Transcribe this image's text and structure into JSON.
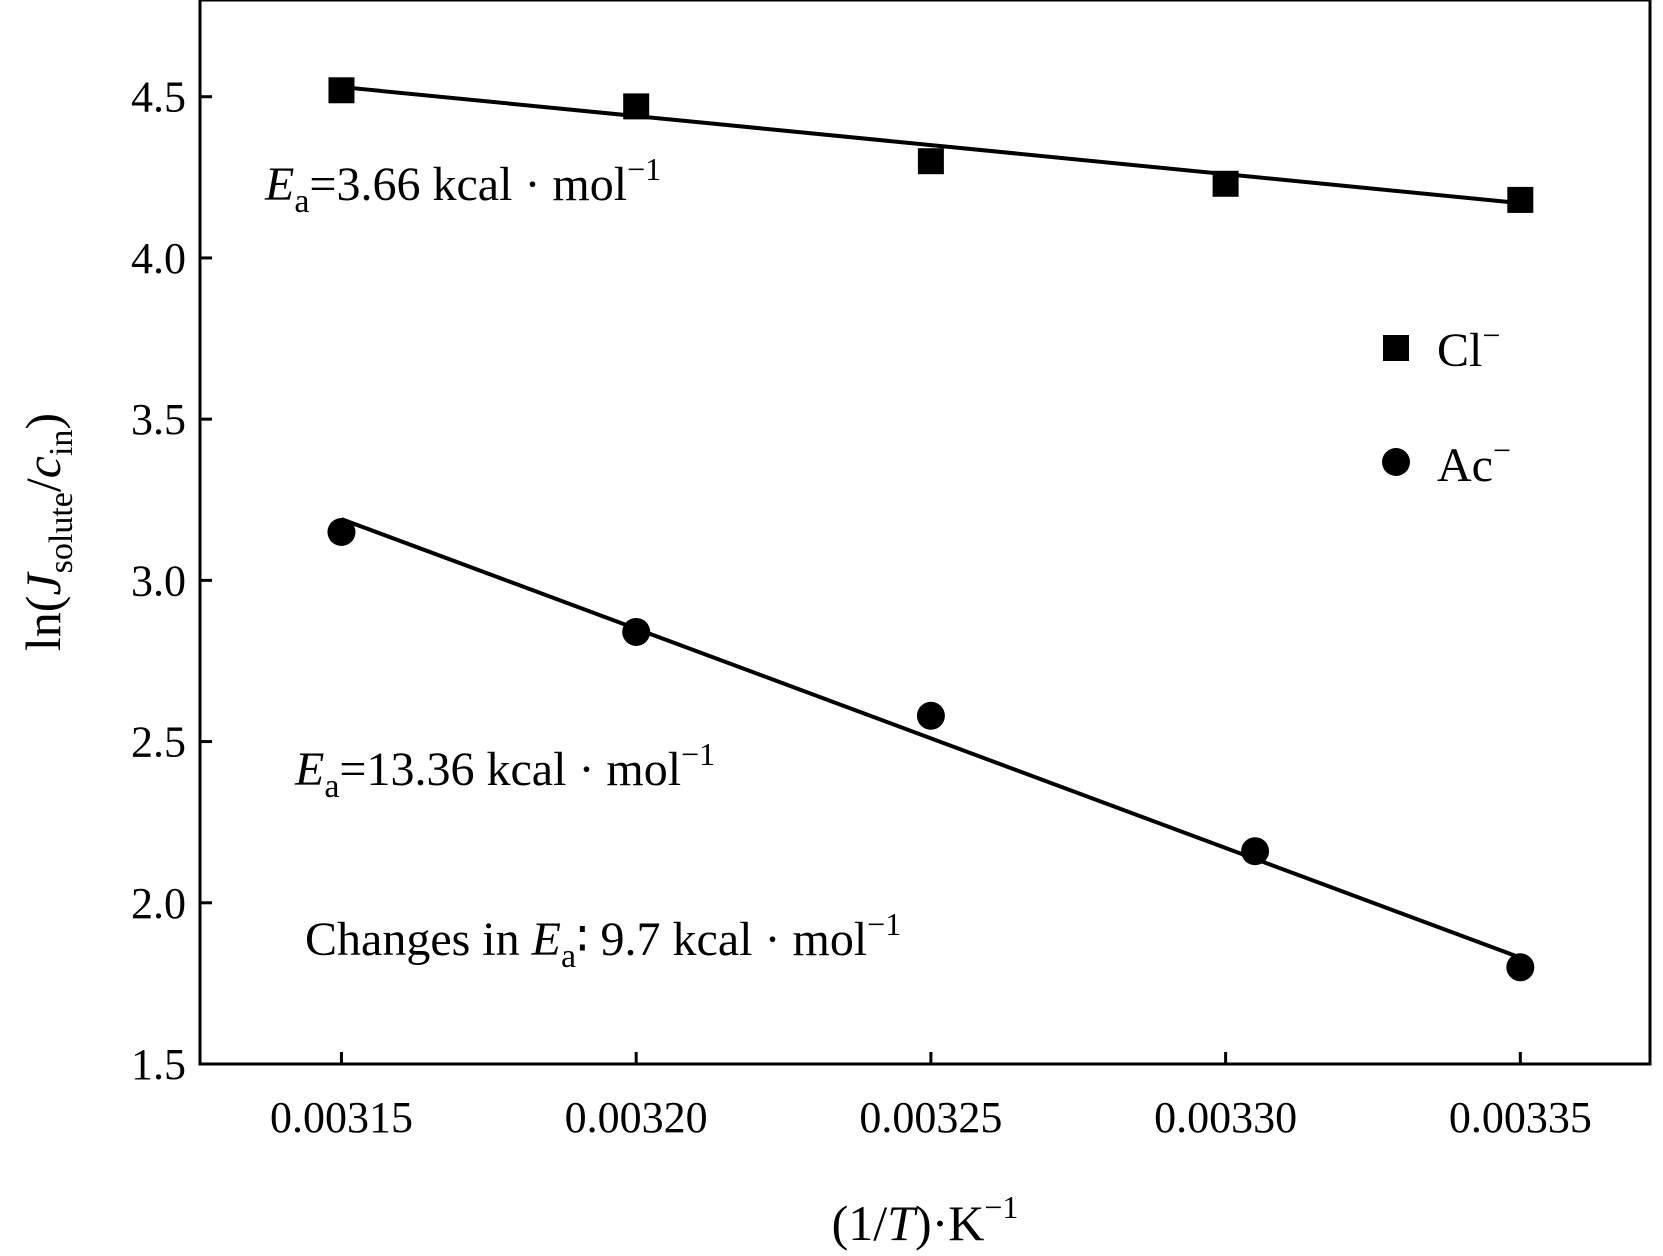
{
  "chart_data": {
    "type": "scatter",
    "title": "",
    "xlabel": {
      "prefix": "(1/",
      "var": "T",
      "suffix": ")·K",
      "sup": "−1"
    },
    "ylabel": {
      "prefix": "ln(",
      "var1": "J",
      "sub1": "solute",
      "mid": "/",
      "var2": "c",
      "sub2": "in",
      "suffix": ")"
    },
    "xlim": [
      0.003126,
      0.003372
    ],
    "ylim": [
      1.5,
      4.8
    ],
    "xticks": [
      {
        "value": 0.00315,
        "label": "0.00315"
      },
      {
        "value": 0.0032,
        "label": "0.00320"
      },
      {
        "value": 0.00325,
        "label": "0.00325"
      },
      {
        "value": 0.0033,
        "label": "0.00330"
      },
      {
        "value": 0.00335,
        "label": "0.00335"
      }
    ],
    "yticks": [
      {
        "value": 1.5,
        "label": "1.5"
      },
      {
        "value": 2.0,
        "label": "2.0"
      },
      {
        "value": 2.5,
        "label": "2.5"
      },
      {
        "value": 3.0,
        "label": "3.0"
      },
      {
        "value": 3.5,
        "label": "3.5"
      },
      {
        "value": 4.0,
        "label": "4.0"
      },
      {
        "value": 4.5,
        "label": "4.5"
      }
    ],
    "series": [
      {
        "name": "Cl",
        "sup": "−",
        "marker": "square",
        "x": [
          0.00315,
          0.0032,
          0.00325,
          0.0033,
          0.00335
        ],
        "y": [
          4.52,
          4.47,
          4.3,
          4.23,
          4.18
        ],
        "fit": {
          "x": [
            0.00315,
            0.00335
          ],
          "y": [
            4.53,
            4.17
          ]
        }
      },
      {
        "name": "Ac",
        "sup": "−",
        "marker": "circle",
        "x": [
          0.00315,
          0.0032,
          0.00325,
          0.003305,
          0.00335
        ],
        "y": [
          3.15,
          2.84,
          2.58,
          2.16,
          1.8
        ],
        "fit": {
          "x": [
            0.00315,
            0.00335
          ],
          "y": [
            3.19,
            1.83
          ]
        }
      }
    ],
    "annotations": [
      {
        "var": "E",
        "sub": "a",
        "text": "=3.66 kcal · mol",
        "sup": "−1"
      },
      {
        "var": "E",
        "sub": "a",
        "text": "=13.36 kcal · mol",
        "sup": "−1"
      },
      {
        "prefix": "Changes in ",
        "var": "E",
        "sub": "a",
        "text": "∶ 9.7 kcal · mol",
        "sup": "−1"
      }
    ],
    "legend_position": "right"
  }
}
